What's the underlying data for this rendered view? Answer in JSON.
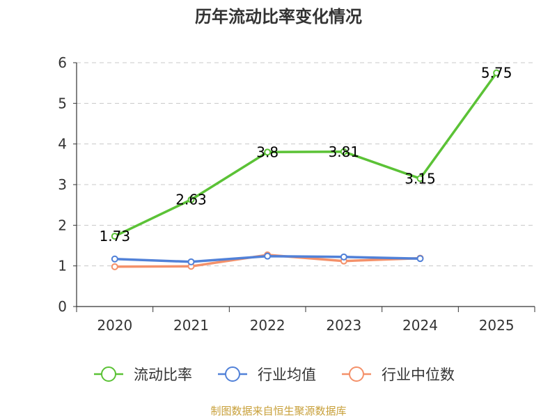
{
  "chart_data": {
    "type": "line",
    "title": "历年流动比率变化情况",
    "categories": [
      "2020",
      "2021",
      "2022",
      "2023",
      "2024",
      "2025"
    ],
    "ylim": [
      0,
      6
    ],
    "yticks": [
      0,
      1,
      2,
      3,
      4,
      5,
      6
    ],
    "grid": true,
    "legend_position": "bottom",
    "series": [
      {
        "name": "流动比率",
        "color": "#5bc236",
        "values": [
          1.73,
          2.63,
          3.8,
          3.81,
          3.15,
          5.75
        ],
        "data_labels": [
          "1.73",
          "2.63",
          "3.8",
          "3.81",
          "3.15",
          "5.75"
        ]
      },
      {
        "name": "行业均值",
        "color": "#5181d8",
        "values": [
          1.17,
          1.1,
          1.24,
          1.22,
          1.18,
          null
        ]
      },
      {
        "name": "行业中位数",
        "color": "#f4916a",
        "values": [
          0.98,
          0.99,
          1.27,
          1.12,
          1.19,
          null
        ]
      }
    ],
    "source": "制图数据来自恒生聚源数据库"
  }
}
